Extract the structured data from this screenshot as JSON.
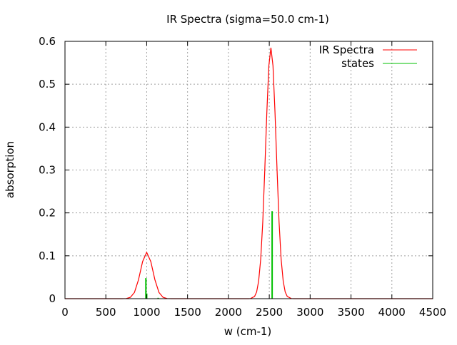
{
  "chart_data": {
    "type": "line",
    "title": "IR Spectra (sigma=50.0 cm-1)",
    "xlabel": "w (cm-1)",
    "ylabel": "absorption",
    "xlim": [
      0,
      4500
    ],
    "ylim": [
      0,
      0.6
    ],
    "xticks": [
      0,
      500,
      1000,
      1500,
      2000,
      2500,
      3000,
      3500,
      4000,
      4500
    ],
    "yticks": [
      0,
      0.1,
      0.2,
      0.3,
      0.4,
      0.5,
      0.6
    ],
    "xtick_labels": [
      "0",
      "500",
      "1000",
      "1500",
      "2000",
      "2500",
      "3000",
      "3500",
      "4000",
      "4500"
    ],
    "ytick_labels": [
      "0",
      "0.1",
      "0.2",
      "0.3",
      "0.4",
      "0.5",
      "0.6"
    ],
    "grid": true,
    "legend_position": "top-right",
    "series": [
      {
        "name": "IR Spectra",
        "color": "#ff0000",
        "style": "line",
        "x": [
          0,
          700,
          750,
          800,
          850,
          900,
          950,
          1000,
          1050,
          1100,
          1150,
          1200,
          1250,
          1300,
          2250,
          2270,
          2320,
          2345,
          2370,
          2395,
          2420,
          2445,
          2470,
          2495,
          2520,
          2545,
          2570,
          2595,
          2620,
          2645,
          2670,
          2695,
          2720,
          2770,
          2800,
          4500
        ],
        "y": [
          0,
          0,
          0.0004,
          0.0031,
          0.0146,
          0.0444,
          0.0865,
          0.108,
          0.0865,
          0.0444,
          0.0146,
          0.0031,
          0.0004,
          0,
          0,
          0.0004,
          0.0052,
          0.0156,
          0.041,
          0.092,
          0.179,
          0.3,
          0.435,
          0.543,
          0.585,
          0.543,
          0.435,
          0.3,
          0.179,
          0.092,
          0.041,
          0.0156,
          0.0052,
          0.0004,
          0,
          0
        ]
      },
      {
        "name": "states",
        "color": "#00c000",
        "style": "impulses",
        "x": [
          990,
          1000,
          1140,
          2535
        ],
        "y": [
          0.048,
          0.012,
          0.002,
          0.204
        ]
      }
    ]
  }
}
